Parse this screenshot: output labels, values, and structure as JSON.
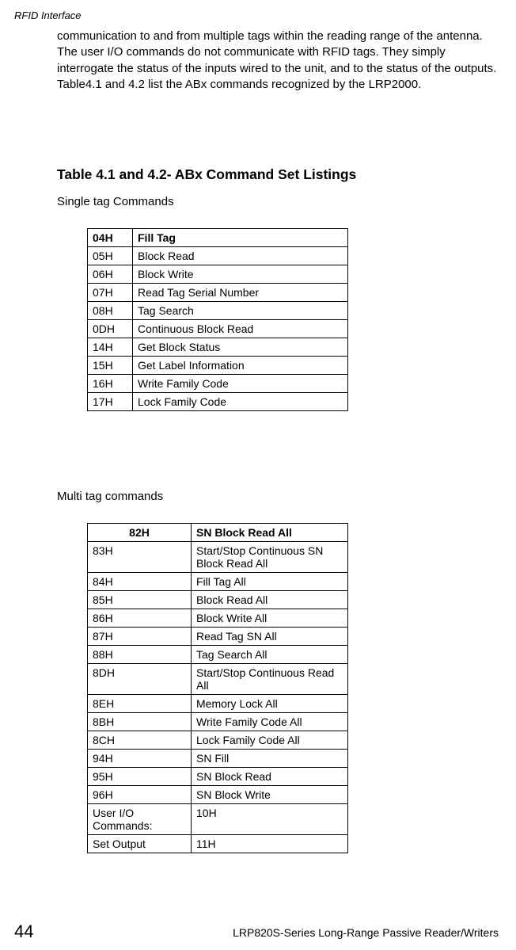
{
  "header": {
    "section": "RFID Interface"
  },
  "paragraph": "communication to and from multiple tags within the reading range of the antenna. The user I/O commands do not communicate with RFID tags. They simply interrogate the status of the inputs wired to the unit, and to the status of the outputs. Table4.1 and 4.2 list the ABx commands recognized by the LRP2000.",
  "section_heading": "Table 4.1 and 4.2- ABx Command Set Listings",
  "subtext1": "Single tag Commands",
  "table1": {
    "head_code": "04H",
    "head_desc": "Fill Tag",
    "rows": [
      {
        "code": "05H",
        "desc": "Block Read"
      },
      {
        "code": "06H",
        "desc": "Block Write"
      },
      {
        "code": "07H",
        "desc": "Read Tag Serial Number"
      },
      {
        "code": "08H",
        "desc": "Tag Search"
      },
      {
        "code": "0DH",
        "desc": "Continuous Block Read"
      },
      {
        "code": "14H",
        "desc": "Get Block Status"
      },
      {
        "code": "15H",
        "desc": "Get Label Information"
      },
      {
        "code": "16H",
        "desc": "Write Family Code"
      },
      {
        "code": "17H",
        "desc": "Lock Family Code"
      }
    ]
  },
  "subtext2": "Multi tag commands",
  "table2": {
    "head_code": "82H",
    "head_desc": "SN Block Read All",
    "rows": [
      {
        "code": "83H",
        "desc": "Start/Stop Continuous SN Block Read All"
      },
      {
        "code": "84H",
        "desc": "Fill Tag All"
      },
      {
        "code": "85H",
        "desc": "Block Read All"
      },
      {
        "code": "86H",
        "desc": "Block Write All"
      },
      {
        "code": "87H",
        "desc": "Read Tag SN All"
      },
      {
        "code": "88H",
        "desc": "Tag Search All"
      },
      {
        "code": "8DH",
        "desc": "Start/Stop Continuous Read All"
      },
      {
        "code": "8EH",
        "desc": "Memory Lock All"
      },
      {
        "code": "8BH",
        "desc": "Write Family Code All"
      },
      {
        "code": "8CH",
        "desc": "Lock Family Code All"
      },
      {
        "code": "94H",
        "desc": "SN Fill"
      },
      {
        "code": "95H",
        "desc": "SN Block Read"
      },
      {
        "code": "96H",
        "desc": "SN Block Write"
      },
      {
        "code": "User I/O Commands:",
        "desc": "10H"
      },
      {
        "code": "Set Output",
        "desc": "11H"
      }
    ]
  },
  "footer": {
    "page": "44",
    "text": "LRP820S-Series Long-Range Passive Reader/Writers"
  }
}
